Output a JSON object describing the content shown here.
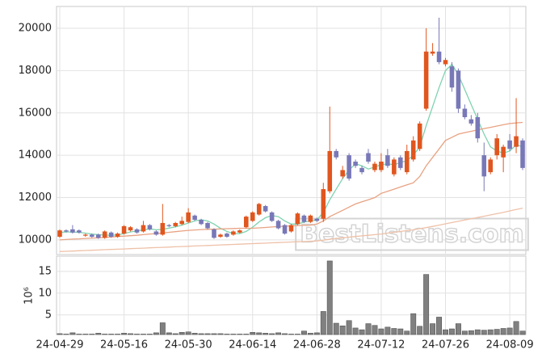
{
  "chart_data": {
    "type": "candlestick",
    "categories": [
      "24-04-29",
      null,
      null,
      null,
      null,
      null,
      null,
      null,
      null,
      null,
      "24-05-16",
      null,
      null,
      null,
      null,
      null,
      null,
      null,
      null,
      null,
      "24-05-30",
      null,
      null,
      null,
      null,
      null,
      null,
      null,
      null,
      null,
      "24-06-14",
      null,
      null,
      null,
      null,
      null,
      null,
      null,
      null,
      null,
      "24-06-28",
      null,
      null,
      null,
      null,
      null,
      null,
      null,
      null,
      null,
      "24-07-12",
      null,
      null,
      null,
      null,
      null,
      null,
      null,
      null,
      null,
      "24-07-26",
      null,
      null,
      null,
      null,
      null,
      null,
      null,
      null,
      null,
      "24-08-09",
      null,
      null
    ],
    "open": [
      10150,
      10450,
      10500,
      10450,
      10200,
      10250,
      10250,
      10100,
      10350,
      10150,
      10300,
      10450,
      10500,
      10400,
      10700,
      10400,
      10250,
      10700,
      10650,
      10750,
      10850,
      11150,
      10950,
      10800,
      10500,
      10150,
      10300,
      10250,
      10350,
      10600,
      10900,
      11200,
      11600,
      11300,
      10900,
      10700,
      10400,
      10750,
      11150,
      10850,
      11000,
      11000,
      12300,
      14200,
      13000,
      14000,
      13700,
      13400,
      14100,
      13300,
      13300,
      14000,
      13100,
      13900,
      13200,
      13800,
      14300,
      16200,
      18800,
      18900,
      18300,
      18200,
      18000,
      16200,
      15700,
      15800,
      14000,
      13200,
      14000,
      13900,
      14700,
      14400,
      14700
    ],
    "high": [
      10500,
      10500,
      10700,
      10500,
      10300,
      10300,
      10300,
      10450,
      10400,
      10350,
      10700,
      10650,
      10550,
      10900,
      10750,
      10450,
      11700,
      10750,
      10850,
      11100,
      11500,
      11200,
      11000,
      10850,
      10550,
      10300,
      10350,
      10450,
      10500,
      11150,
      11350,
      11750,
      11650,
      11350,
      10950,
      10750,
      10750,
      11300,
      11200,
      11200,
      11050,
      12700,
      16300,
      14300,
      13500,
      14100,
      13800,
      13500,
      14300,
      13700,
      14100,
      14300,
      13900,
      14000,
      14500,
      14900,
      15600,
      20000,
      19300,
      20500,
      18600,
      18400,
      18100,
      16400,
      15900,
      16000,
      14600,
      13900,
      15000,
      14500,
      15000,
      16700,
      14800
    ],
    "low": [
      10100,
      10350,
      10300,
      10300,
      10150,
      10100,
      10050,
      10050,
      10100,
      10100,
      10250,
      10400,
      10300,
      10350,
      10450,
      10200,
      10200,
      10600,
      10600,
      10700,
      10800,
      10900,
      10700,
      10500,
      10050,
      10100,
      10100,
      10200,
      10300,
      10550,
      10850,
      11150,
      11300,
      10850,
      10500,
      10250,
      10350,
      10700,
      10800,
      10800,
      10850,
      10850,
      12200,
      13800,
      12900,
      12800,
      13400,
      13100,
      13600,
      13200,
      13200,
      13400,
      13000,
      13300,
      13100,
      13700,
      14200,
      16100,
      18700,
      18300,
      18200,
      17000,
      16000,
      15700,
      15400,
      14600,
      12300,
      13100,
      13800,
      13200,
      14200,
      14100,
      13300
    ],
    "close": [
      10450,
      10400,
      10350,
      10350,
      10250,
      10150,
      10100,
      10400,
      10150,
      10300,
      10650,
      10600,
      10350,
      10700,
      10500,
      10250,
      10800,
      10650,
      10800,
      10900,
      11300,
      10950,
      10750,
      10550,
      10100,
      10250,
      10150,
      10400,
      10450,
      11100,
      11300,
      11700,
      11350,
      10900,
      10550,
      10300,
      10700,
      11250,
      10850,
      11150,
      10900,
      12400,
      14200,
      13900,
      13300,
      12900,
      13500,
      13200,
      13700,
      13600,
      13700,
      13500,
      13800,
      13400,
      14200,
      14700,
      15500,
      18900,
      18900,
      18400,
      18500,
      17200,
      16200,
      15800,
      15500,
      14800,
      13000,
      13800,
      14800,
      14400,
      14300,
      14900,
      13400
    ],
    "up_color": "#e0561f",
    "down_color": "#7878b8",
    "ylim": [
      9310,
      21030
    ],
    "yticks": [
      10000,
      12000,
      14000,
      16000,
      18000,
      20000
    ],
    "grid": true,
    "moving_averages": [
      {
        "color": "#7fd3b0",
        "values": [
          10350,
          10380,
          10370,
          10360,
          10320,
          10280,
          10250,
          10230,
          10220,
          10240,
          10300,
          10380,
          10420,
          10480,
          10520,
          10480,
          10500,
          10560,
          10620,
          10700,
          10800,
          10900,
          10950,
          10900,
          10750,
          10550,
          10400,
          10300,
          10300,
          10400,
          10600,
          10850,
          11050,
          11150,
          11100,
          10900,
          10750,
          10750,
          10850,
          10900,
          10950,
          11300,
          11900,
          12400,
          12900,
          13300,
          13600,
          13500,
          13350,
          13450,
          13550,
          13600,
          13550,
          13650,
          13750,
          14000,
          14400,
          15400,
          16300,
          17200,
          18000,
          18300,
          17800,
          17100,
          16400,
          15700,
          15000,
          14400,
          14200,
          14100,
          14200,
          14500,
          14400
        ]
      },
      {
        "color": "#e8a282",
        "values": [
          10000,
          10020,
          10040,
          10050,
          10070,
          10090,
          10100,
          10120,
          10140,
          10160,
          10180,
          10200,
          10220,
          10250,
          10280,
          10300,
          10330,
          10360,
          10390,
          10420,
          10450,
          10470,
          10490,
          10500,
          10510,
          10520,
          10530,
          10540,
          10550,
          10550,
          10550,
          10570,
          10590,
          10610,
          10630,
          10650,
          10660,
          10680,
          10690,
          10700,
          10750,
          10900,
          11100,
          11250,
          11400,
          11550,
          11700,
          11800,
          11900,
          12000,
          12200,
          12300,
          12400,
          12500,
          12600,
          12700,
          13000,
          13500,
          13900,
          14300,
          14700,
          14850,
          15000,
          15070,
          15130,
          15200,
          15260,
          15320,
          15380,
          15440,
          15500,
          15530,
          15550
        ]
      },
      {
        "color": "#eec1a8",
        "values": [
          9450,
          9463,
          9475,
          9488,
          9500,
          9513,
          9525,
          9538,
          9550,
          9563,
          9575,
          9588,
          9600,
          9613,
          9625,
          9638,
          9650,
          9663,
          9675,
          9688,
          9700,
          9713,
          9725,
          9738,
          9750,
          9763,
          9775,
          9788,
          9800,
          9813,
          9825,
          9838,
          9850,
          9863,
          9875,
          9888,
          9900,
          9913,
          9925,
          9938,
          9950,
          9990,
          10030,
          10070,
          10100,
          10130,
          10160,
          10190,
          10220,
          10250,
          10280,
          10320,
          10360,
          10400,
          10440,
          10480,
          10530,
          10580,
          10640,
          10700,
          10760,
          10820,
          10880,
          10940,
          11000,
          11060,
          11120,
          11180,
          11240,
          11300,
          11370,
          11440,
          11500
        ]
      }
    ],
    "volume": {
      "label": "10⁶",
      "color": "#808080",
      "values": [
        0.7,
        0.6,
        0.9,
        0.6,
        0.6,
        0.6,
        0.8,
        0.6,
        0.6,
        0.6,
        0.8,
        0.7,
        0.6,
        0.6,
        0.6,
        0.9,
        3.2,
        0.9,
        0.7,
        1.0,
        1.1,
        0.8,
        0.7,
        0.7,
        0.7,
        0.7,
        0.6,
        0.6,
        0.6,
        0.6,
        1.0,
        0.9,
        0.8,
        0.7,
        0.9,
        0.7,
        0.6,
        0.6,
        1.3,
        0.8,
        0.9,
        5.8,
        17.4,
        3.1,
        2.5,
        3.7,
        2.0,
        1.6,
        3.0,
        2.6,
        1.8,
        2.2,
        1.9,
        1.8,
        1.3,
        5.3,
        2.4,
        14.3,
        3.0,
        4.5,
        1.6,
        1.8,
        3.0,
        1.3,
        1.4,
        1.6,
        1.5,
        1.6,
        1.7,
        1.9,
        2.0,
        3.5,
        1.3
      ],
      "ylim": [
        0.5,
        18.5
      ],
      "yticks": [
        5,
        10,
        15
      ]
    },
    "watermark": "BestListens.com"
  }
}
